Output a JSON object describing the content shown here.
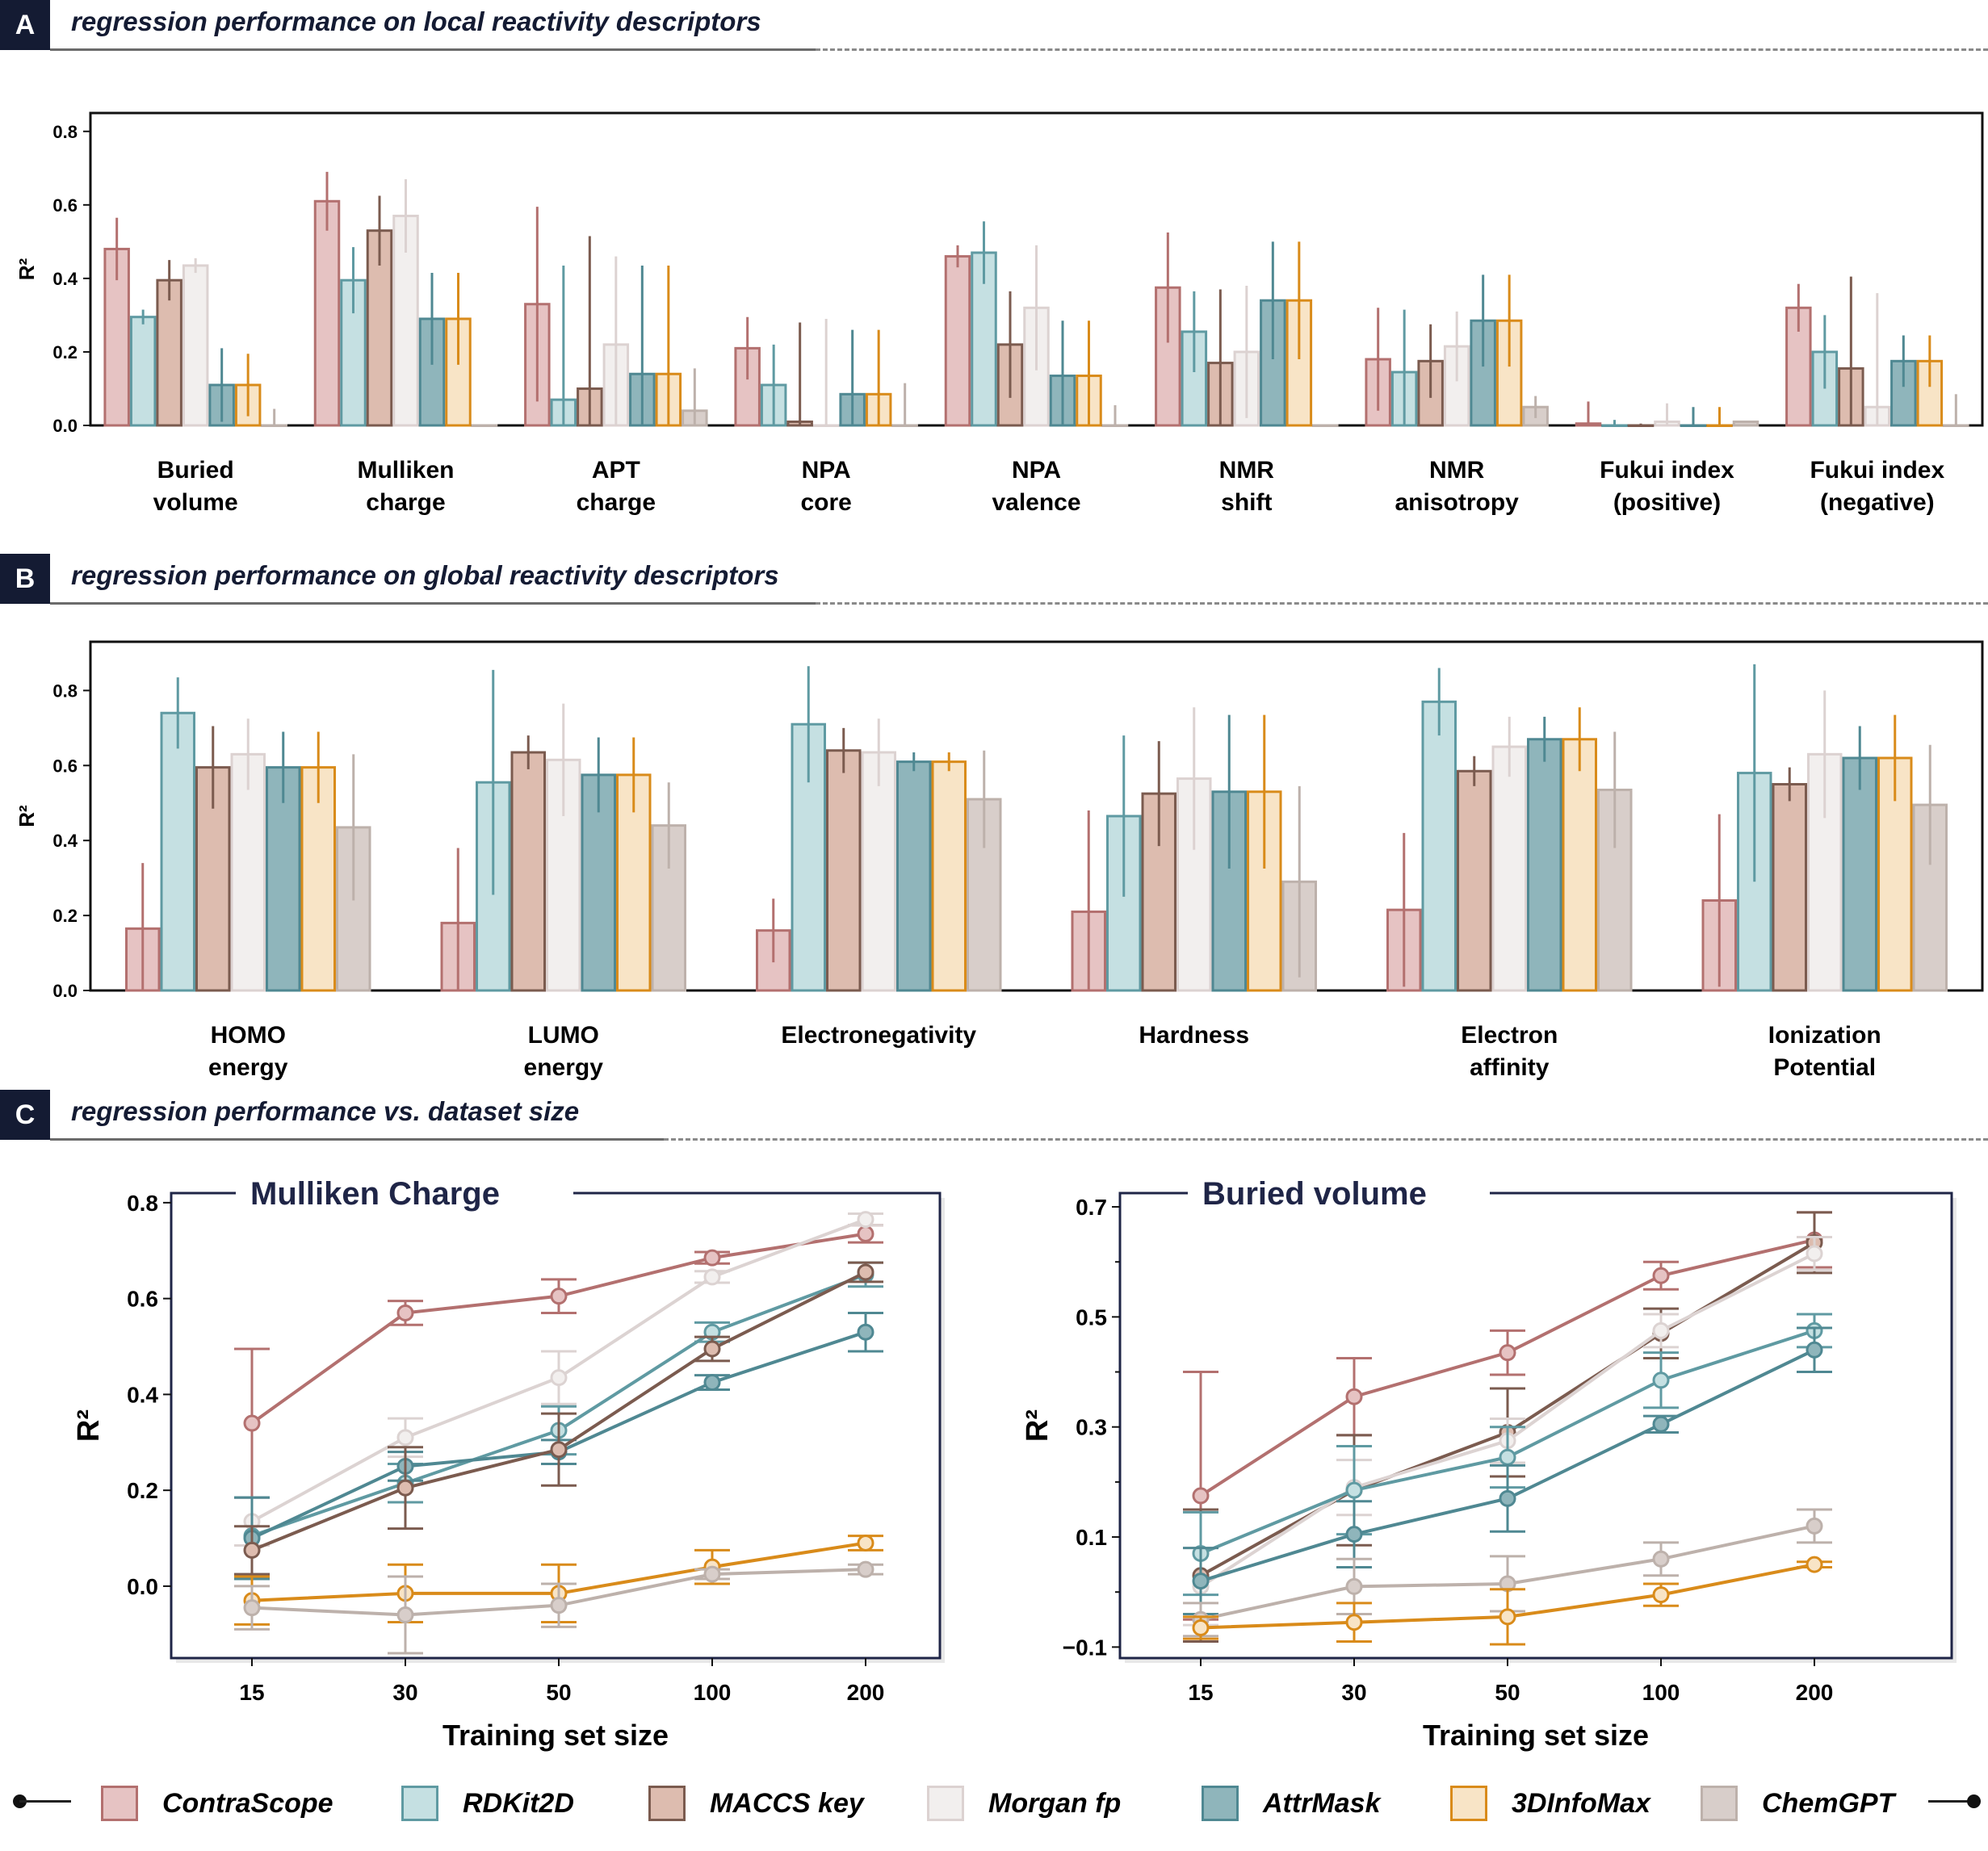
{
  "sections": {
    "a": {
      "badge": "A",
      "title": "regression performance on local reactivity descriptors"
    },
    "b": {
      "badge": "B",
      "title": "regression performance on global reactivity descriptors"
    },
    "c": {
      "badge": "C",
      "title": "regression performance vs. dataset size"
    }
  },
  "colors": {
    "ContraScope": {
      "fill": "#e6c3c3",
      "edge": "#b3706f"
    },
    "RDKit2D": {
      "fill": "#c5e0e2",
      "edge": "#5f9aa2"
    },
    "MACCS key": {
      "fill": "#ddbcaf",
      "edge": "#7b5b4f"
    },
    "Morgan fp": {
      "fill": "#f2efee",
      "edge": "#dcd2d1"
    },
    "AttrMask": {
      "fill": "#8fb5bb",
      "edge": "#4f8892"
    },
    "3DInfoMax": {
      "fill": "#f8e4c6",
      "edge": "#d98b1a"
    },
    "ChemGPT": {
      "fill": "#d8ceca",
      "edge": "#bdb1ab"
    }
  },
  "legend": {
    "items": [
      "ContraScope",
      "RDKit2D",
      "MACCS key",
      "Morgan fp",
      "AttrMask",
      "3DInfoMax",
      "ChemGPT"
    ]
  },
  "chart_data": [
    {
      "type": "bar",
      "id": "local",
      "title": "regression performance on local reactivity descriptors",
      "ylabel": "R²",
      "ylim": [
        0,
        0.85
      ],
      "yticks": [
        "0.0",
        "0.2",
        "0.4",
        "0.6",
        "0.8"
      ],
      "categories": [
        "Buried\nvolume",
        "Mulliken\ncharge",
        "APT\ncharge",
        "NPA\ncore",
        "NPA\nvalence",
        "NMR\nshift",
        "NMR\nanisotropy",
        "Fukui index\n(positive)",
        "Fukui index\n(negative)"
      ],
      "series": [
        {
          "name": "ContraScope",
          "values": [
            0.48,
            0.61,
            0.33,
            0.21,
            0.46,
            0.375,
            0.18,
            0.005,
            0.32
          ],
          "err": [
            0.085,
            0.08,
            0.265,
            0.085,
            0.03,
            0.15,
            0.14,
            0.06,
            0.065
          ]
        },
        {
          "name": "RDKit2D",
          "values": [
            0.295,
            0.395,
            0.07,
            0.11,
            0.47,
            0.255,
            0.145,
            0.0,
            0.2
          ],
          "err": [
            0.02,
            0.09,
            0.365,
            0.11,
            0.085,
            0.11,
            0.17,
            0.015,
            0.1
          ]
        },
        {
          "name": "MACCS key",
          "values": [
            0.395,
            0.53,
            0.1,
            0.01,
            0.22,
            0.17,
            0.175,
            0.0,
            0.155
          ],
          "err": [
            0.055,
            0.095,
            0.415,
            0.27,
            0.145,
            0.2,
            0.1,
            0.005,
            0.25
          ]
        },
        {
          "name": "Morgan fp",
          "values": [
            0.435,
            0.57,
            0.22,
            0.0,
            0.32,
            0.2,
            0.215,
            0.01,
            0.05
          ],
          "err": [
            0.02,
            0.1,
            0.24,
            0.29,
            0.17,
            0.18,
            0.095,
            0.05,
            0.31
          ]
        },
        {
          "name": "AttrMask",
          "values": [
            0.11,
            0.29,
            0.14,
            0.085,
            0.135,
            0.34,
            0.285,
            0.0,
            0.175
          ],
          "err": [
            0.1,
            0.125,
            0.295,
            0.175,
            0.15,
            0.16,
            0.125,
            0.05,
            0.07
          ]
        },
        {
          "name": "3DInfoMax",
          "values": [
            0.11,
            0.29,
            0.14,
            0.085,
            0.135,
            0.34,
            0.285,
            0.0,
            0.175
          ],
          "err": [
            0.085,
            0.125,
            0.295,
            0.175,
            0.15,
            0.16,
            0.125,
            0.05,
            0.07
          ]
        },
        {
          "name": "ChemGPT",
          "values": [
            0.0,
            0.0,
            0.04,
            0.0,
            0.0,
            0.0,
            0.05,
            0.01,
            0.0
          ],
          "err": [
            0.045,
            0.0,
            0.115,
            0.115,
            0.055,
            0.0,
            0.03,
            0.0,
            0.085
          ]
        }
      ]
    },
    {
      "type": "bar",
      "id": "global",
      "title": "regression performance on global reactivity descriptors",
      "ylabel": "R²",
      "ylim": [
        0,
        0.93
      ],
      "yticks": [
        "0.0",
        "0.2",
        "0.4",
        "0.6",
        "0.8"
      ],
      "categories": [
        "HOMO\nenergy",
        "LUMO\nenergy",
        "Electronegativity",
        "Hardness",
        "Electron\naffinity",
        "Ionization\nPotential"
      ],
      "series": [
        {
          "name": "ContraScope",
          "values": [
            0.165,
            0.18,
            0.16,
            0.21,
            0.215,
            0.24
          ],
          "err": [
            0.175,
            0.2,
            0.085,
            0.27,
            0.205,
            0.23
          ]
        },
        {
          "name": "RDKit2D",
          "values": [
            0.74,
            0.555,
            0.71,
            0.465,
            0.77,
            0.58
          ],
          "err": [
            0.095,
            0.3,
            0.155,
            0.215,
            0.09,
            0.29
          ]
        },
        {
          "name": "MACCS key",
          "values": [
            0.595,
            0.635,
            0.64,
            0.525,
            0.585,
            0.55
          ],
          "err": [
            0.11,
            0.045,
            0.06,
            0.14,
            0.04,
            0.045
          ]
        },
        {
          "name": "Morgan fp",
          "values": [
            0.63,
            0.615,
            0.635,
            0.565,
            0.65,
            0.63
          ],
          "err": [
            0.095,
            0.15,
            0.09,
            0.19,
            0.08,
            0.17
          ]
        },
        {
          "name": "AttrMask",
          "values": [
            0.595,
            0.575,
            0.61,
            0.53,
            0.67,
            0.62
          ],
          "err": [
            0.095,
            0.1,
            0.025,
            0.205,
            0.06,
            0.085
          ]
        },
        {
          "name": "3DInfoMax",
          "values": [
            0.595,
            0.575,
            0.61,
            0.53,
            0.67,
            0.62
          ],
          "err": [
            0.095,
            0.1,
            0.025,
            0.205,
            0.085,
            0.115
          ]
        },
        {
          "name": "ChemGPT",
          "values": [
            0.435,
            0.44,
            0.51,
            0.29,
            0.535,
            0.495
          ],
          "err": [
            0.195,
            0.115,
            0.13,
            0.255,
            0.155,
            0.16
          ]
        }
      ]
    },
    {
      "type": "line",
      "id": "mulliken",
      "title": "Mulliken Charge",
      "xlabel": "Training set size",
      "ylabel": "R²",
      "x": [
        "15",
        "30",
        "50",
        "100",
        "200"
      ],
      "ylim": [
        -0.15,
        0.82
      ],
      "yticks": [
        "0.0",
        "0.2",
        "0.4",
        "0.6",
        "0.8"
      ],
      "series": [
        {
          "name": "ContraScope",
          "values": [
            0.34,
            0.57,
            0.605,
            0.685,
            0.735
          ],
          "err": [
            0.155,
            0.025,
            0.035,
            0.012,
            0.018
          ]
        },
        {
          "name": "Morgan fp",
          "values": [
            0.135,
            0.31,
            0.435,
            0.645,
            0.765
          ],
          "err": [
            0.05,
            0.04,
            0.055,
            0.012,
            0.012
          ]
        },
        {
          "name": "RDKit2D",
          "values": [
            0.105,
            0.215,
            0.325,
            0.53,
            0.65
          ],
          "err": [
            0.08,
            0.04,
            0.05,
            0.02,
            0.025
          ]
        },
        {
          "name": "AttrMask",
          "values": [
            0.1,
            0.25,
            0.28,
            0.425,
            0.53
          ],
          "err": [
            0.085,
            0.03,
            0.025,
            0.015,
            0.04
          ]
        },
        {
          "name": "MACCS key",
          "values": [
            0.075,
            0.205,
            0.285,
            0.495,
            0.655
          ],
          "err": [
            0.05,
            0.085,
            0.075,
            0.025,
            0.02
          ]
        },
        {
          "name": "3DInfoMax",
          "values": [
            -0.03,
            -0.015,
            -0.015,
            0.04,
            0.09
          ],
          "err": [
            0.05,
            0.06,
            0.06,
            0.035,
            0.015
          ]
        },
        {
          "name": "ChemGPT",
          "values": [
            -0.045,
            -0.06,
            -0.04,
            0.025,
            0.035
          ],
          "err": [
            0.045,
            0.08,
            0.045,
            0.01,
            0.01
          ]
        }
      ]
    },
    {
      "type": "line",
      "id": "buried",
      "title": "Buried volume",
      "xlabel": "Training set size",
      "ylabel": "R²",
      "x": [
        "15",
        "30",
        "50",
        "100",
        "200"
      ],
      "ylim": [
        -0.12,
        0.725
      ],
      "yticks": [
        "−0.1",
        "0.1",
        "0.3",
        "0.5",
        "0.7"
      ],
      "series": [
        {
          "name": "ContraScope",
          "values": [
            0.175,
            0.355,
            0.435,
            0.575,
            0.64
          ],
          "err": [
            0.225,
            0.07,
            0.04,
            0.025,
            0.05
          ]
        },
        {
          "name": "MACCS key",
          "values": [
            0.03,
            0.185,
            0.29,
            0.47,
            0.635
          ],
          "err": [
            0.12,
            0.1,
            0.08,
            0.045,
            0.055
          ]
        },
        {
          "name": "Morgan fp",
          "values": [
            0.01,
            0.19,
            0.275,
            0.475,
            0.615
          ],
          "err": [
            0.07,
            0.05,
            0.04,
            0.03,
            0.03
          ]
        },
        {
          "name": "RDKit2D",
          "values": [
            0.07,
            0.185,
            0.245,
            0.385,
            0.475
          ],
          "err": [
            0.075,
            0.08,
            0.055,
            0.05,
            0.03
          ]
        },
        {
          "name": "AttrMask",
          "values": [
            0.02,
            0.105,
            0.17,
            0.305,
            0.44
          ],
          "err": [
            0.06,
            0.06,
            0.06,
            0.015,
            0.04
          ]
        },
        {
          "name": "ChemGPT",
          "values": [
            -0.05,
            0.01,
            0.015,
            0.06,
            0.12
          ],
          "err": [
            0.03,
            0.05,
            0.05,
            0.03,
            0.03
          ]
        },
        {
          "name": "3DInfoMax",
          "values": [
            -0.065,
            -0.055,
            -0.045,
            -0.005,
            0.05
          ],
          "err": [
            0.02,
            0.035,
            0.05,
            0.02,
            0.005
          ]
        }
      ]
    }
  ]
}
